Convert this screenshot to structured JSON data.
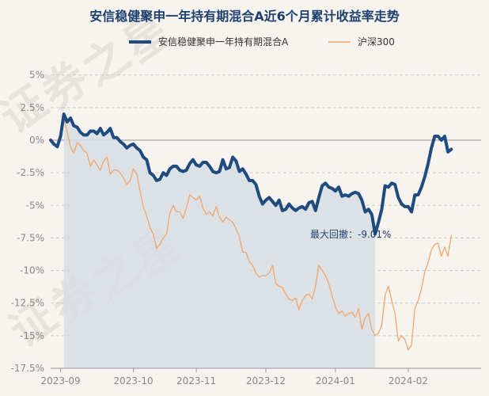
{
  "colors": {
    "fund": "#1f4b7e",
    "index": "#f2a66a",
    "drawdown_fill": "#d7dde4",
    "grid": "#c9c9c9",
    "zero_line": "#b5b5b5"
  },
  "watermark": [
    "证",
    "券",
    "之",
    "星",
    "证",
    "券",
    "之",
    "星"
  ],
  "chart_data": {
    "type": "line",
    "title": "安信稳健聚申一年持有期混合A近6个月累计收益率走势",
    "xlabel": "",
    "ylabel": "",
    "legend_position": "top",
    "ylim": [
      -17.5,
      6.5
    ],
    "xlim": [
      0,
      130
    ],
    "yticks": [
      5,
      2.5,
      0,
      -2.5,
      -5,
      -7.5,
      -10,
      -12.5,
      -15,
      -17.5
    ],
    "ytick_labels": [
      "5%",
      "2.5%",
      "0%",
      "-2.5%",
      "-5%",
      "-7.5%",
      "-10%",
      "-12.5%",
      "-15%",
      "-17.5%"
    ],
    "xticks": [
      {
        "label": "2023-09",
        "x": 3
      },
      {
        "label": "2023-10",
        "x": 25
      },
      {
        "label": "2023-11",
        "x": 44
      },
      {
        "label": "2023-12",
        "x": 65
      },
      {
        "label": "2024-01",
        "x": 86
      },
      {
        "label": "2024-02",
        "x": 108
      }
    ],
    "grid": true,
    "series": [
      {
        "name": "安信稳健聚申一年持有期混合A",
        "color": "#1f4b7e",
        "points": [
          [
            0,
            0
          ],
          [
            1,
            -0.3
          ],
          [
            2,
            -0.5
          ],
          [
            3,
            0.3
          ],
          [
            4,
            2.0
          ],
          [
            5,
            1.4
          ],
          [
            6,
            1.7
          ],
          [
            7,
            1.1
          ],
          [
            8,
            1.0
          ],
          [
            9,
            0.6
          ],
          [
            10,
            0.4
          ],
          [
            11,
            0.4
          ],
          [
            12,
            0.7
          ],
          [
            13,
            0.7
          ],
          [
            14,
            0.5
          ],
          [
            15,
            0.9
          ],
          [
            16,
            0.4
          ],
          [
            17,
            0.6
          ],
          [
            18,
            0.9
          ],
          [
            19,
            0.2
          ],
          [
            20,
            0.2
          ],
          [
            21,
            -0.1
          ],
          [
            22,
            -0.3
          ],
          [
            23,
            -0.6
          ],
          [
            24,
            -0.4
          ],
          [
            25,
            -0.3
          ],
          [
            26,
            -0.6
          ],
          [
            27,
            -0.8
          ],
          [
            28,
            -1.3
          ],
          [
            29,
            -1.5
          ],
          [
            30,
            -2.5
          ],
          [
            31,
            -2.7
          ],
          [
            32,
            -3.1
          ],
          [
            33,
            -3.0
          ],
          [
            34,
            -2.5
          ],
          [
            35,
            -2.7
          ],
          [
            36,
            -2.2
          ],
          [
            37,
            -2.0
          ],
          [
            38,
            -2.0
          ],
          [
            39,
            -2.3
          ],
          [
            40,
            -2.4
          ],
          [
            41,
            -2.3
          ],
          [
            42,
            -1.8
          ],
          [
            43,
            -1.5
          ],
          [
            44,
            -1.9
          ],
          [
            45,
            -2.0
          ],
          [
            46,
            -1.7
          ],
          [
            47,
            -1.7
          ],
          [
            48,
            -2.0
          ],
          [
            49,
            -2.4
          ],
          [
            50,
            -2.5
          ],
          [
            51,
            -2.4
          ],
          [
            52,
            -1.5
          ],
          [
            53,
            -2.2
          ],
          [
            54,
            -2.1
          ],
          [
            55,
            -1.3
          ],
          [
            56,
            -1.6
          ],
          [
            57,
            -2.4
          ],
          [
            58,
            -2.2
          ],
          [
            59,
            -2.6
          ],
          [
            60,
            -3.1
          ],
          [
            61,
            -3.1
          ],
          [
            62,
            -3.4
          ],
          [
            63,
            -4.3
          ],
          [
            64,
            -4.9
          ],
          [
            65,
            -4.6
          ],
          [
            66,
            -4.4
          ],
          [
            67,
            -4.7
          ],
          [
            68,
            -5.0
          ],
          [
            69,
            -4.6
          ],
          [
            70,
            -5.4
          ],
          [
            71,
            -5.3
          ],
          [
            72,
            -4.9
          ],
          [
            73,
            -5.2
          ],
          [
            74,
            -5.4
          ],
          [
            75,
            -5.2
          ],
          [
            76,
            -5.1
          ],
          [
            77,
            -5.3
          ],
          [
            78,
            -4.8
          ],
          [
            79,
            -4.7
          ],
          [
            80,
            -5.4
          ],
          [
            81,
            -4.4
          ],
          [
            82,
            -3.5
          ],
          [
            83,
            -3.3
          ],
          [
            84,
            -3.6
          ],
          [
            85,
            -3.7
          ],
          [
            86,
            -3.9
          ],
          [
            87,
            -3.6
          ],
          [
            88,
            -4.3
          ],
          [
            89,
            -4.2
          ],
          [
            90,
            -4.3
          ],
          [
            91,
            -4.1
          ],
          [
            92,
            -4.0
          ],
          [
            93,
            -4.1
          ],
          [
            94,
            -4.6
          ],
          [
            95,
            -5.5
          ],
          [
            96,
            -5.3
          ],
          [
            97,
            -5.7
          ],
          [
            98,
            -7.2
          ],
          [
            99,
            -6.3
          ],
          [
            100,
            -5.3
          ],
          [
            101,
            -3.5
          ],
          [
            102,
            -3.6
          ],
          [
            103,
            -3.3
          ],
          [
            104,
            -3.4
          ],
          [
            105,
            -4.4
          ],
          [
            106,
            -4.9
          ],
          [
            107,
            -5.1
          ],
          [
            108,
            -5.1
          ],
          [
            109,
            -5.5
          ],
          [
            110,
            -4.2
          ],
          [
            111,
            -4.2
          ],
          [
            112,
            -3.6
          ],
          [
            113,
            -2.8
          ],
          [
            114,
            -1.8
          ],
          [
            115,
            -0.6
          ],
          [
            116,
            0.3
          ],
          [
            117,
            0.3
          ],
          [
            118,
            0.0
          ],
          [
            119,
            0.3
          ],
          [
            120,
            -0.9
          ],
          [
            121,
            -0.7
          ]
        ]
      },
      {
        "name": "沪深300",
        "color": "#f2a66a",
        "points": [
          [
            0,
            0
          ],
          [
            1,
            -0.2
          ],
          [
            2,
            -0.6
          ],
          [
            3,
            0.1
          ],
          [
            4,
            1.7
          ],
          [
            5,
            0.6
          ],
          [
            6,
            -0.5
          ],
          [
            7,
            -1.0
          ],
          [
            8,
            -0.2
          ],
          [
            9,
            -0.4
          ],
          [
            10,
            -0.8
          ],
          [
            11,
            -1.0
          ],
          [
            12,
            -2.0
          ],
          [
            13,
            -1.5
          ],
          [
            14,
            -1.9
          ],
          [
            15,
            -2.3
          ],
          [
            16,
            -1.6
          ],
          [
            17,
            -1.3
          ],
          [
            18,
            -2.6
          ],
          [
            19,
            -2.3
          ],
          [
            20,
            -2.3
          ],
          [
            21,
            -2.5
          ],
          [
            22,
            -2.9
          ],
          [
            23,
            -3.4
          ],
          [
            24,
            -3.1
          ],
          [
            25,
            -2.2
          ],
          [
            26,
            -2.6
          ],
          [
            27,
            -3.9
          ],
          [
            28,
            -5.1
          ],
          [
            29,
            -5.8
          ],
          [
            30,
            -6.7
          ],
          [
            31,
            -7.2
          ],
          [
            32,
            -8.3
          ],
          [
            33,
            -8.0
          ],
          [
            34,
            -7.5
          ],
          [
            35,
            -7.2
          ],
          [
            36,
            -5.6
          ],
          [
            37,
            -5.0
          ],
          [
            38,
            -5.5
          ],
          [
            39,
            -5.5
          ],
          [
            40,
            -6.0
          ],
          [
            41,
            -5.2
          ],
          [
            42,
            -4.2
          ],
          [
            43,
            -4.4
          ],
          [
            44,
            -4.6
          ],
          [
            45,
            -4.3
          ],
          [
            46,
            -5.2
          ],
          [
            47,
            -5.7
          ],
          [
            48,
            -5.5
          ],
          [
            49,
            -5.8
          ],
          [
            50,
            -5.1
          ],
          [
            51,
            -5.9
          ],
          [
            52,
            -6.3
          ],
          [
            53,
            -5.9
          ],
          [
            54,
            -6.1
          ],
          [
            55,
            -6.3
          ],
          [
            56,
            -6.8
          ],
          [
            57,
            -7.4
          ],
          [
            58,
            -8.6
          ],
          [
            59,
            -8.6
          ],
          [
            60,
            -9.3
          ],
          [
            61,
            -9.6
          ],
          [
            62,
            -10.2
          ],
          [
            63,
            -10.5
          ],
          [
            64,
            -10.4
          ],
          [
            65,
            -10.4
          ],
          [
            66,
            -10.2
          ],
          [
            67,
            -9.6
          ],
          [
            68,
            -11.0
          ],
          [
            69,
            -11.2
          ],
          [
            70,
            -11.3
          ],
          [
            71,
            -11.8
          ],
          [
            72,
            -12.2
          ],
          [
            73,
            -12.3
          ],
          [
            74,
            -12.1
          ],
          [
            75,
            -13.0
          ],
          [
            76,
            -12.3
          ],
          [
            77,
            -11.9
          ],
          [
            78,
            -11.8
          ],
          [
            79,
            -12.2
          ],
          [
            80,
            -11.2
          ],
          [
            81,
            -9.6
          ],
          [
            82,
            -10.0
          ],
          [
            83,
            -10.4
          ],
          [
            84,
            -11.0
          ],
          [
            85,
            -11.9
          ],
          [
            86,
            -12.8
          ],
          [
            87,
            -13.3
          ],
          [
            88,
            -13.1
          ],
          [
            89,
            -13.5
          ],
          [
            90,
            -13.3
          ],
          [
            91,
            -13.2
          ],
          [
            92,
            -13.6
          ],
          [
            93,
            -12.9
          ],
          [
            94,
            -14.5
          ],
          [
            95,
            -13.6
          ],
          [
            96,
            -13.3
          ],
          [
            97,
            -14.5
          ],
          [
            98,
            -15.0
          ],
          [
            99,
            -14.8
          ],
          [
            100,
            -14.2
          ],
          [
            101,
            -11.9
          ],
          [
            102,
            -11.2
          ],
          [
            103,
            -12.3
          ],
          [
            104,
            -13.3
          ],
          [
            105,
            -15.4
          ],
          [
            106,
            -15.0
          ],
          [
            107,
            -15.3
          ],
          [
            108,
            -16.1
          ],
          [
            109,
            -15.7
          ],
          [
            110,
            -12.9
          ],
          [
            111,
            -12.3
          ],
          [
            112,
            -11.4
          ],
          [
            113,
            -10.1
          ],
          [
            114,
            -9.4
          ],
          [
            115,
            -8.4
          ],
          [
            116,
            -8.0
          ],
          [
            117,
            -7.9
          ],
          [
            118,
            -8.9
          ],
          [
            119,
            -8.2
          ],
          [
            120,
            -8.9
          ],
          [
            121,
            -7.3
          ]
        ]
      }
    ],
    "drawdown": {
      "label": "最大回撤：-9.01%",
      "start_x": 4,
      "end_x": 98,
      "start_value": 2.0,
      "end_value": -7.2
    }
  }
}
